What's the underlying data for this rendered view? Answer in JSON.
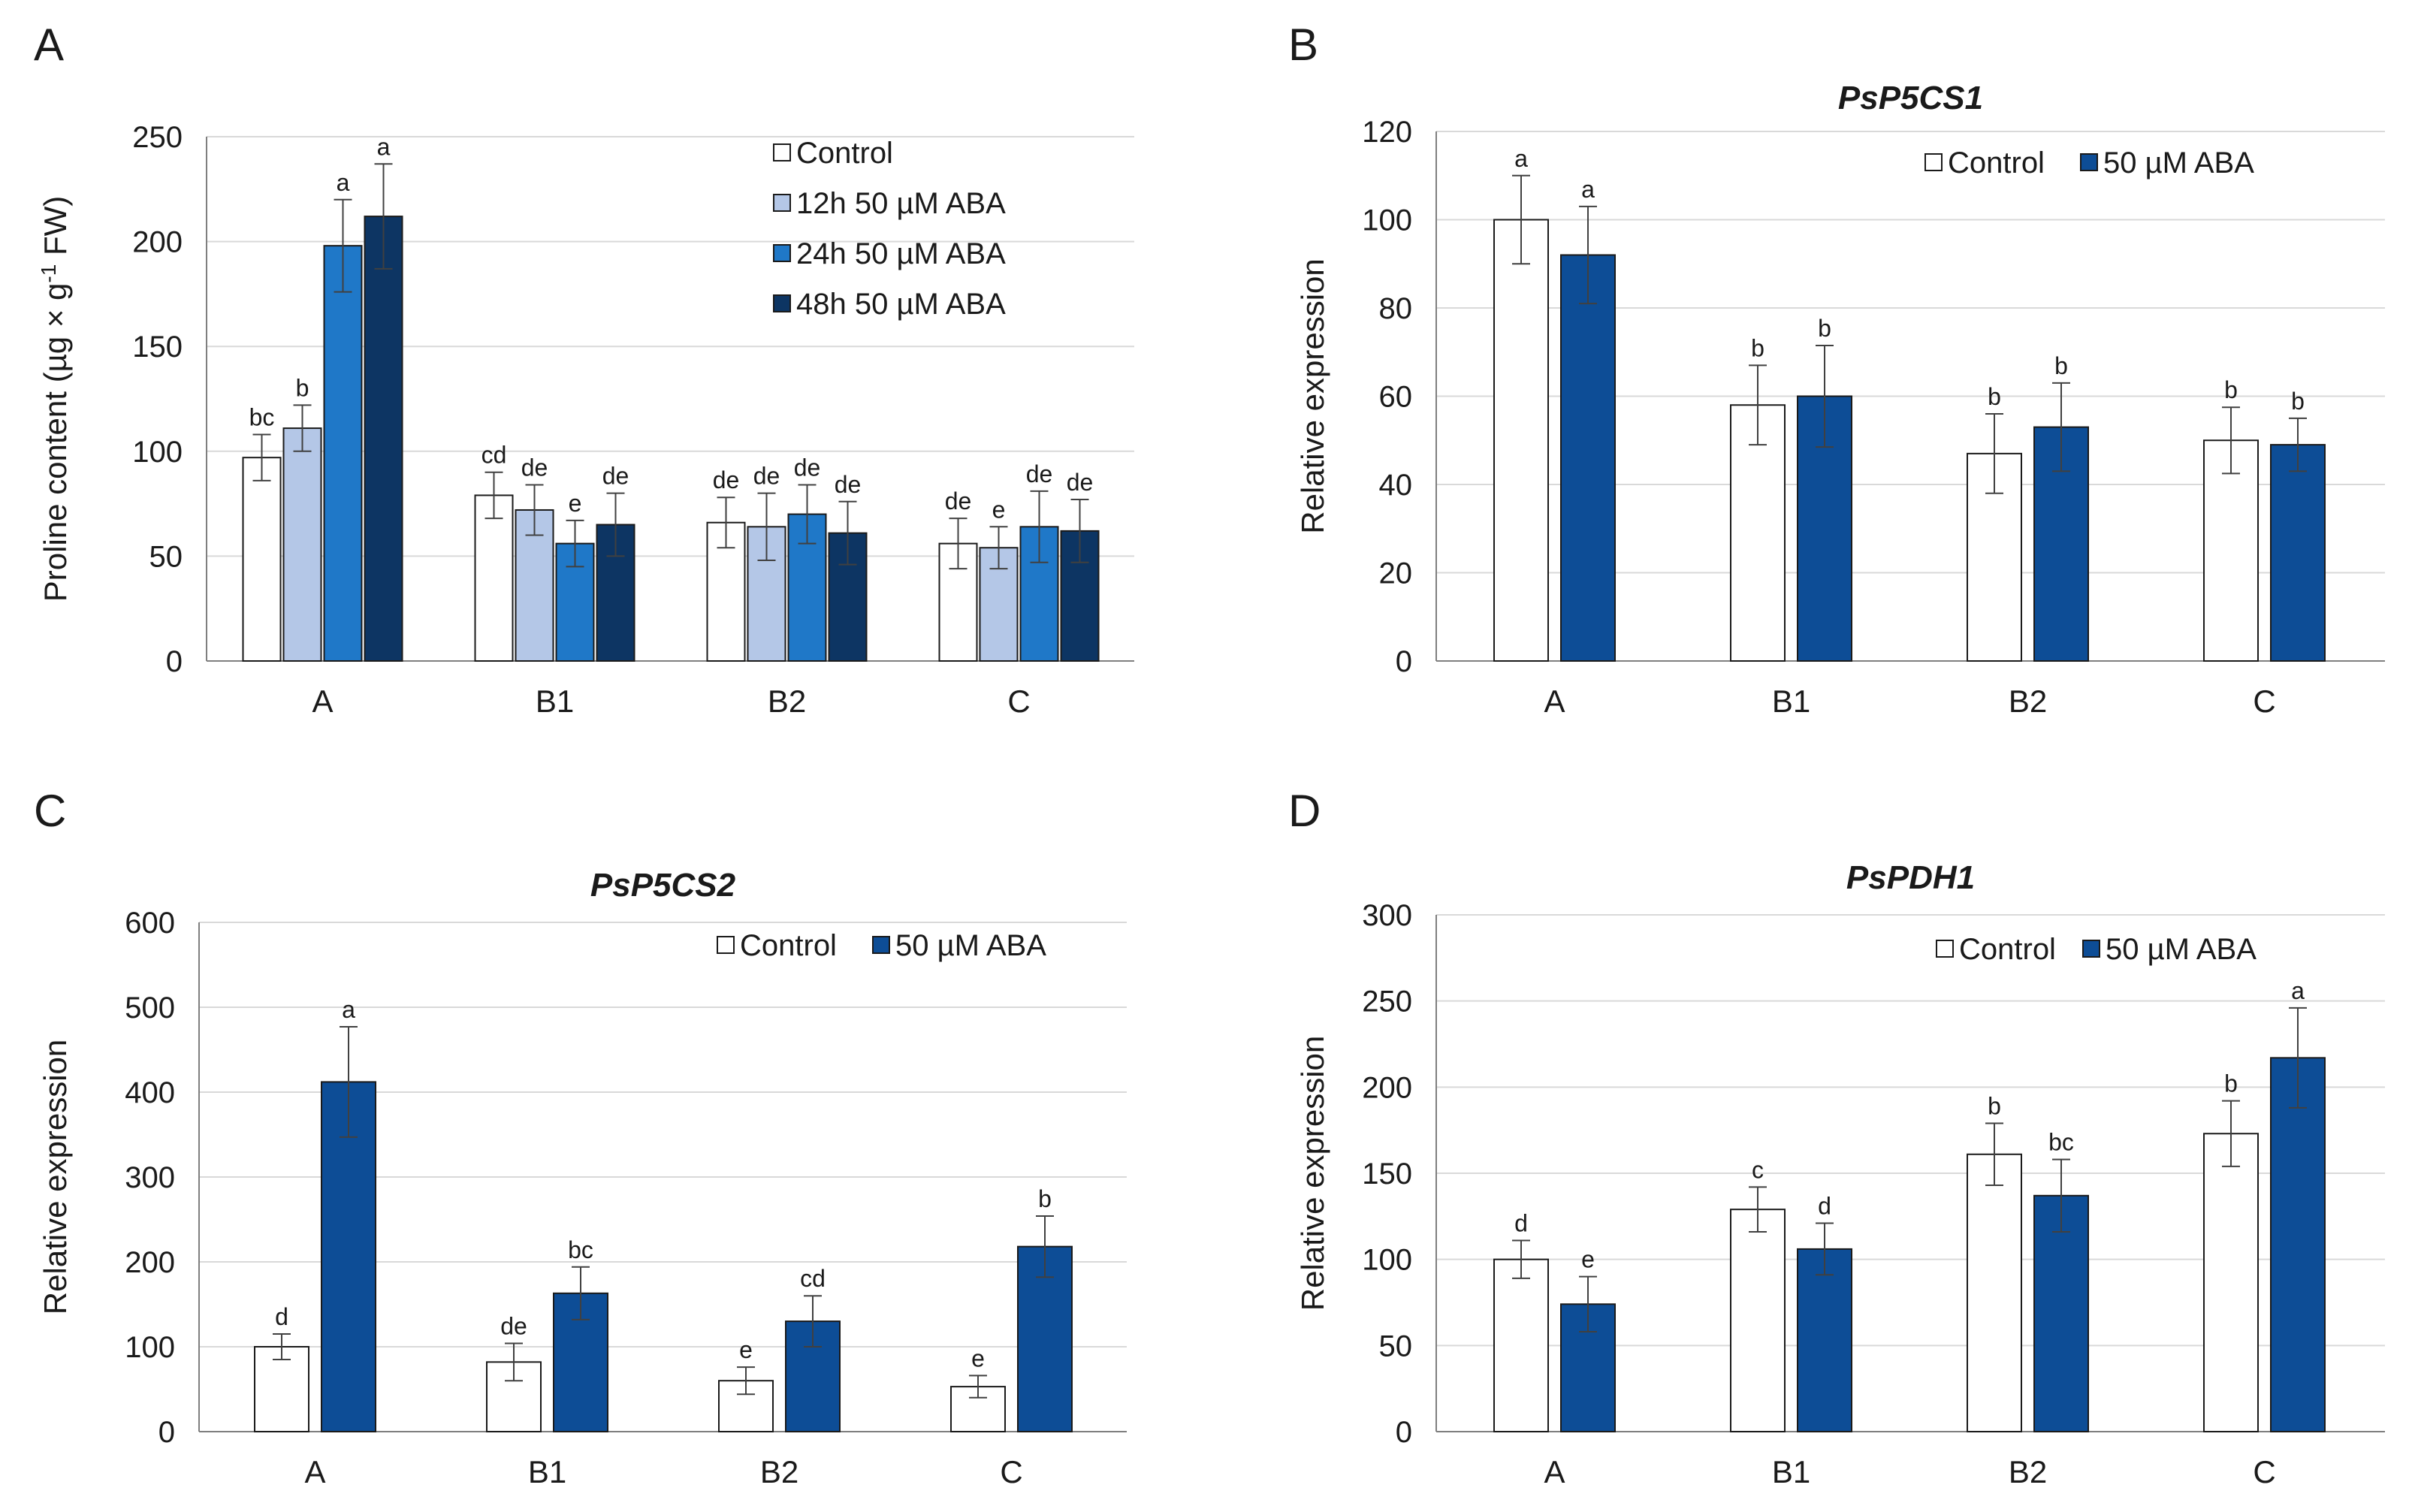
{
  "colors": {
    "control": "#ffffff",
    "aba12": "#b4c7e7",
    "aba24": "#1f78c8",
    "aba48": "#0d3563",
    "aba": "#0d4d96",
    "grid": "#d9d9d9",
    "axis": "#7f7f7f",
    "error": "#404040"
  },
  "chart_data": [
    {
      "panel": "A",
      "type": "bar",
      "title": "",
      "ylabel_main": "Proline content (µg × g",
      "ylabel_sup": "-1",
      "ylabel_tail": " FW)",
      "ylim": [
        0,
        250
      ],
      "yticks": [
        "0",
        "50",
        "100",
        "150",
        "200",
        "250"
      ],
      "categories": [
        "A",
        "B1",
        "B2",
        "C"
      ],
      "legend_position": "top-right",
      "series": [
        {
          "name": "Control",
          "color_key": "control",
          "values": [
            97,
            79,
            66,
            56
          ],
          "errors": [
            11,
            11,
            12,
            12
          ],
          "letters": [
            "bc",
            "cd",
            "de",
            "de"
          ]
        },
        {
          "name": "12h 50 µM ABA",
          "color_key": "aba12",
          "values": [
            111,
            72,
            64,
            54
          ],
          "errors": [
            11,
            12,
            16,
            10
          ],
          "letters": [
            "b",
            "de",
            "de",
            "e"
          ]
        },
        {
          "name": "24h 50 µM ABA",
          "color_key": "aba24",
          "values": [
            198,
            56,
            70,
            64
          ],
          "errors": [
            22,
            11,
            14,
            17
          ],
          "letters": [
            "a",
            "e",
            "de",
            "de"
          ]
        },
        {
          "name": "48h 50 µM ABA",
          "color_key": "aba48",
          "values": [
            212,
            65,
            61,
            62
          ],
          "errors": [
            25,
            15,
            15,
            15
          ],
          "letters": [
            "a",
            "de",
            "de",
            "de"
          ]
        }
      ]
    },
    {
      "panel": "B",
      "type": "bar",
      "title": "PsP5CS1",
      "ylabel_main": "Relative expression",
      "ylabel_sup": "",
      "ylabel_tail": "",
      "ylim": [
        0,
        120
      ],
      "yticks": [
        "0",
        "20",
        "40",
        "60",
        "80",
        "100",
        "120"
      ],
      "categories": [
        "A",
        "B1",
        "B2",
        "C"
      ],
      "legend_position": "top-right",
      "series": [
        {
          "name": "Control",
          "color_key": "control",
          "values": [
            100,
            58,
            47,
            50
          ],
          "errors": [
            10,
            9,
            9,
            7.5
          ],
          "letters": [
            "a",
            "b",
            "b",
            "b"
          ]
        },
        {
          "name": "50 µM ABA",
          "color_key": "aba",
          "values": [
            92,
            60,
            53,
            49
          ],
          "errors": [
            11,
            11.5,
            10,
            6
          ],
          "letters": [
            "a",
            "b",
            "b",
            "b"
          ]
        }
      ]
    },
    {
      "panel": "C",
      "type": "bar",
      "title": "PsP5CS2",
      "ylabel_main": "Relative expression",
      "ylabel_sup": "",
      "ylabel_tail": "",
      "ylim": [
        0,
        600
      ],
      "yticks": [
        "0",
        "100",
        "200",
        "300",
        "400",
        "500",
        "600"
      ],
      "categories": [
        "A",
        "B1",
        "B2",
        "C"
      ],
      "legend_position": "top-right",
      "series": [
        {
          "name": "Control",
          "color_key": "control",
          "values": [
            100,
            82,
            60,
            53
          ],
          "errors": [
            15,
            22,
            16,
            13
          ],
          "letters": [
            "d",
            "de",
            "e",
            "e"
          ]
        },
        {
          "name": "50 µM ABA",
          "color_key": "aba",
          "values": [
            412,
            163,
            130,
            218
          ],
          "errors": [
            65,
            31,
            30,
            36
          ],
          "letters": [
            "a",
            "bc",
            "cd",
            "b"
          ]
        }
      ]
    },
    {
      "panel": "D",
      "type": "bar",
      "title": "PsPDH1",
      "ylabel_main": "Relative expression",
      "ylabel_sup": "",
      "ylabel_tail": "",
      "ylim": [
        0,
        300
      ],
      "yticks": [
        "0",
        "50",
        "100",
        "150",
        "200",
        "250",
        "300"
      ],
      "categories": [
        "A",
        "B1",
        "B2",
        "C"
      ],
      "legend_position": "top-right",
      "series": [
        {
          "name": "Control",
          "color_key": "control",
          "values": [
            100,
            129,
            161,
            173
          ],
          "errors": [
            11,
            13,
            18,
            19
          ],
          "letters": [
            "d",
            "c",
            "b",
            "b"
          ]
        },
        {
          "name": "50 µM ABA",
          "color_key": "aba",
          "values": [
            74,
            106,
            137,
            217
          ],
          "errors": [
            16,
            15,
            21,
            29
          ],
          "letters": [
            "e",
            "d",
            "bc",
            "a"
          ]
        }
      ]
    }
  ]
}
